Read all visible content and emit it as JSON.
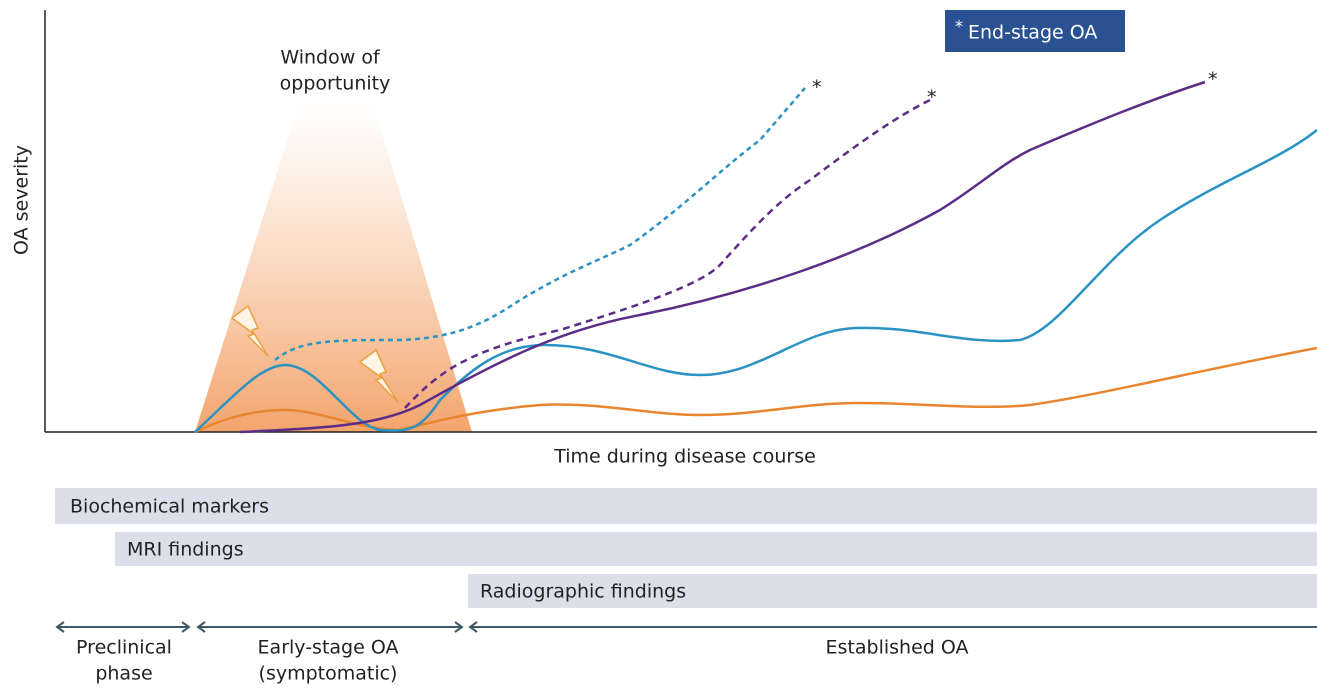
{
  "legend": {
    "marker": "*",
    "label": "End-stage OA"
  },
  "window": {
    "line1": "Window of",
    "line2": "opportunity"
  },
  "axes": {
    "y_label": "OA severity",
    "x_label": "Time during disease course"
  },
  "findings": [
    "Biochemical markers",
    "MRI findings",
    "Radiographic findings"
  ],
  "phases": [
    {
      "line1": "Preclinical",
      "line2": "phase"
    },
    {
      "line1": "Early-stage OA",
      "line2": "(symptomatic)"
    },
    {
      "line1": "Established OA"
    }
  ]
}
